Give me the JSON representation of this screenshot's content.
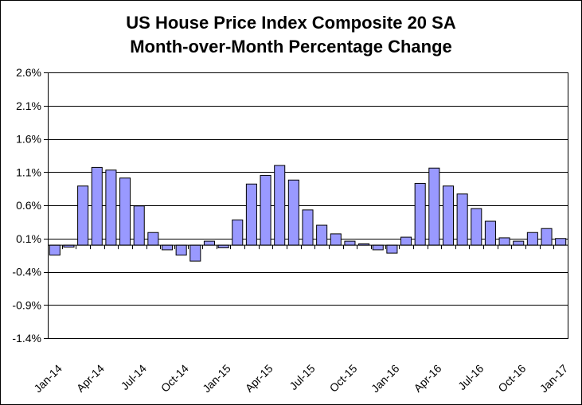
{
  "chart_data": {
    "type": "bar",
    "title_line1": "US House Price Index Composite 20 SA",
    "title_line2": "Month-over-Month Percentage Change",
    "xlabel": "",
    "ylabel": "",
    "ylim": [
      -1.4,
      2.6
    ],
    "y_ticks": [
      "2.6%",
      "2.1%",
      "1.6%",
      "1.1%",
      "0.6%",
      "0.1%",
      "-0.4%",
      "-0.9%",
      "-1.4%"
    ],
    "y_tick_values": [
      2.6,
      2.1,
      1.6,
      1.1,
      0.6,
      0.1,
      -0.4,
      -0.9,
      -1.4
    ],
    "x_tick_labels": [
      {
        "label": "Jan-14",
        "index": 0
      },
      {
        "label": "Apr-14",
        "index": 3
      },
      {
        "label": "Jul-14",
        "index": 6
      },
      {
        "label": "Oct-14",
        "index": 9
      },
      {
        "label": "Jan-15",
        "index": 12
      },
      {
        "label": "Apr-15",
        "index": 15
      },
      {
        "label": "Jul-15",
        "index": 18
      },
      {
        "label": "Oct-15",
        "index": 21
      },
      {
        "label": "Jan-16",
        "index": 24
      },
      {
        "label": "Apr-16",
        "index": 27
      },
      {
        "label": "Jul-16",
        "index": 30
      },
      {
        "label": "Oct-16",
        "index": 33
      },
      {
        "label": "Jan-17",
        "index": 36
      }
    ],
    "bar_color": "#9999ff",
    "grid": true,
    "legend": "none",
    "values": [
      -0.15,
      -0.03,
      0.89,
      1.17,
      1.13,
      1.01,
      0.59,
      0.19,
      -0.07,
      -0.15,
      -0.24,
      0.06,
      -0.04,
      0.38,
      0.92,
      1.05,
      1.2,
      0.98,
      0.53,
      0.3,
      0.17,
      0.06,
      0.02,
      -0.07,
      -0.12,
      0.12,
      0.93,
      1.16,
      0.89,
      0.77,
      0.55,
      0.36,
      0.11,
      0.06,
      0.19,
      0.25,
      0.1
    ]
  }
}
